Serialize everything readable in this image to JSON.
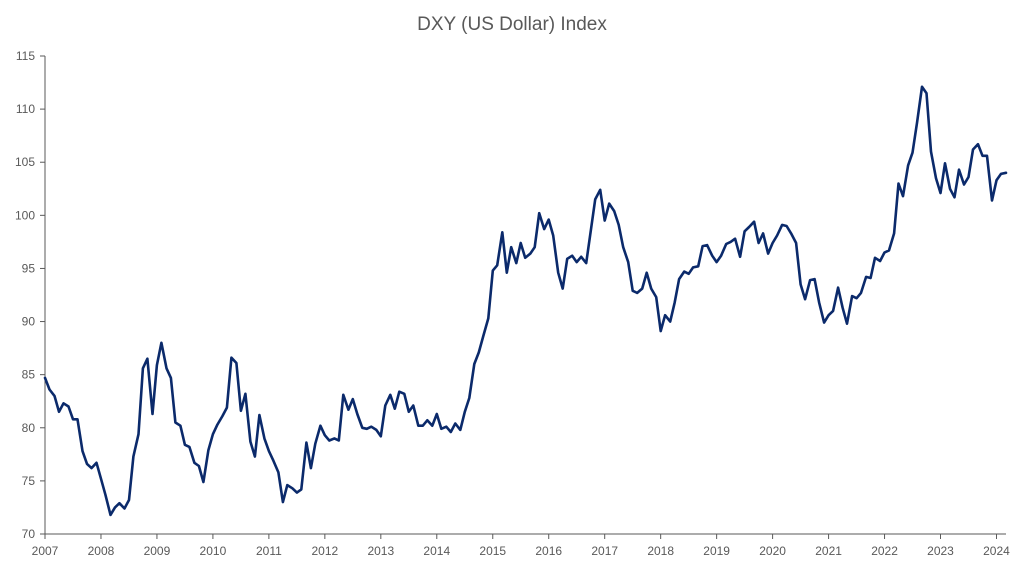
{
  "chart_data": {
    "type": "line",
    "title": "DXY (US Dollar) Index",
    "xlabel": "",
    "ylabel": "",
    "xlim": [
      2007,
      2024.17
    ],
    "ylim": [
      70,
      115
    ],
    "yticks": [
      70,
      75,
      80,
      85,
      90,
      95,
      100,
      105,
      110,
      115
    ],
    "xticks": [
      "2007",
      "2008",
      "2009",
      "2010",
      "2011",
      "2012",
      "2013",
      "2014",
      "2015",
      "2016",
      "2017",
      "2018",
      "2019",
      "2020",
      "2021",
      "2022",
      "2023",
      "2024"
    ],
    "grid": false,
    "legend": "none",
    "colors": {
      "line": "#0b2a6b",
      "axis": "#595959",
      "text": "#595959"
    },
    "series": [
      {
        "x": [
          2007.0,
          2007.08,
          2007.17,
          2007.25,
          2007.33,
          2007.42,
          2007.5,
          2007.58,
          2007.67,
          2007.75,
          2007.83,
          2007.92,
          2008.0,
          2008.08,
          2008.17,
          2008.25,
          2008.33,
          2008.42,
          2008.5,
          2008.58,
          2008.67,
          2008.75,
          2008.83,
          2008.92,
          2009.0,
          2009.08,
          2009.17,
          2009.25,
          2009.33,
          2009.42,
          2009.5,
          2009.58,
          2009.67,
          2009.75,
          2009.83,
          2009.92,
          2010.0,
          2010.08,
          2010.17,
          2010.25,
          2010.33,
          2010.42,
          2010.5,
          2010.58,
          2010.67,
          2010.75,
          2010.83,
          2010.92,
          2011.0,
          2011.08,
          2011.17,
          2011.25,
          2011.33,
          2011.42,
          2011.5,
          2011.58,
          2011.67,
          2011.75,
          2011.83,
          2011.92,
          2012.0,
          2012.08,
          2012.17,
          2012.25,
          2012.33,
          2012.42,
          2012.5,
          2012.58,
          2012.67,
          2012.75,
          2012.83,
          2012.92,
          2013.0,
          2013.08,
          2013.17,
          2013.25,
          2013.33,
          2013.42,
          2013.5,
          2013.58,
          2013.67,
          2013.75,
          2013.83,
          2013.92,
          2014.0,
          2014.08,
          2014.17,
          2014.25,
          2014.33,
          2014.42,
          2014.5,
          2014.58,
          2014.67,
          2014.75,
          2014.83,
          2014.92,
          2015.0,
          2015.08,
          2015.17,
          2015.25,
          2015.33,
          2015.42,
          2015.5,
          2015.58,
          2015.67,
          2015.75,
          2015.83,
          2015.92,
          2016.0,
          2016.08,
          2016.17,
          2016.25,
          2016.33,
          2016.42,
          2016.5,
          2016.58,
          2016.67,
          2016.75,
          2016.83,
          2016.92,
          2017.0,
          2017.08,
          2017.17,
          2017.25,
          2017.33,
          2017.42,
          2017.5,
          2017.58,
          2017.67,
          2017.75,
          2017.83,
          2017.92,
          2018.0,
          2018.08,
          2018.17,
          2018.25,
          2018.33,
          2018.42,
          2018.5,
          2018.58,
          2018.67,
          2018.75,
          2018.83,
          2018.92,
          2019.0,
          2019.08,
          2019.17,
          2019.25,
          2019.33,
          2019.42,
          2019.5,
          2019.58,
          2019.67,
          2019.75,
          2019.83,
          2019.92,
          2020.0,
          2020.08,
          2020.17,
          2020.25,
          2020.33,
          2020.42,
          2020.5,
          2020.58,
          2020.67,
          2020.75,
          2020.83,
          2020.92,
          2021.0,
          2021.08,
          2021.17,
          2021.25,
          2021.33,
          2021.42,
          2021.5,
          2021.58,
          2021.67,
          2021.75,
          2021.83,
          2021.92,
          2022.0,
          2022.08,
          2022.17,
          2022.25,
          2022.33,
          2022.42,
          2022.5,
          2022.58,
          2022.67,
          2022.75,
          2022.83,
          2022.92,
          2023.0,
          2023.08,
          2023.17,
          2023.25,
          2023.33,
          2023.42,
          2023.5,
          2023.58,
          2023.67,
          2023.75,
          2023.83,
          2023.92,
          2024.0,
          2024.08,
          2024.17
        ],
        "y": [
          84.7,
          83.6,
          83.0,
          81.5,
          82.3,
          82.0,
          80.8,
          80.8,
          77.8,
          76.6,
          76.2,
          76.7,
          75.2,
          73.7,
          71.8,
          72.5,
          72.9,
          72.4,
          73.2,
          77.3,
          79.4,
          85.6,
          86.5,
          81.3,
          85.9,
          88.0,
          85.6,
          84.7,
          80.5,
          80.2,
          78.4,
          78.2,
          76.7,
          76.4,
          74.9,
          77.9,
          79.4,
          80.3,
          81.1,
          81.9,
          86.6,
          86.1,
          81.6,
          83.2,
          78.7,
          77.3,
          81.2,
          79.0,
          77.8,
          76.9,
          75.8,
          73.0,
          74.6,
          74.3,
          73.9,
          74.2,
          78.6,
          76.2,
          78.5,
          80.2,
          79.3,
          78.8,
          79.0,
          78.8,
          83.1,
          81.7,
          82.7,
          81.3,
          80.0,
          79.9,
          80.1,
          79.8,
          79.2,
          82.1,
          83.1,
          81.8,
          83.4,
          83.2,
          81.5,
          82.1,
          80.2,
          80.2,
          80.7,
          80.2,
          81.3,
          79.9,
          80.1,
          79.6,
          80.4,
          79.8,
          81.5,
          82.8,
          86.0,
          87.1,
          88.6,
          90.3,
          94.8,
          95.3,
          98.4,
          94.6,
          97.0,
          95.5,
          97.4,
          96.0,
          96.4,
          97.0,
          100.2,
          98.7,
          99.6,
          98.1,
          94.6,
          93.1,
          95.9,
          96.2,
          95.6,
          96.1,
          95.5,
          98.5,
          101.5,
          102.4,
          99.5,
          101.1,
          100.4,
          99.1,
          97.0,
          95.6,
          92.9,
          92.7,
          93.1,
          94.6,
          93.1,
          92.3,
          89.1,
          90.6,
          90.0,
          91.8,
          94.0,
          94.7,
          94.5,
          95.1,
          95.2,
          97.1,
          97.2,
          96.2,
          95.6,
          96.2,
          97.3,
          97.5,
          97.8,
          96.1,
          98.5,
          98.9,
          99.4,
          97.4,
          98.3,
          96.4,
          97.4,
          98.1,
          99.1,
          99.0,
          98.3,
          97.4,
          93.5,
          92.1,
          93.9,
          94.0,
          91.8,
          89.9,
          90.6,
          91.0,
          93.2,
          91.3,
          89.8,
          92.4,
          92.2,
          92.7,
          94.2,
          94.1,
          96.0,
          95.7,
          96.5,
          96.7,
          98.3,
          103.0,
          101.8,
          104.7,
          105.9,
          108.7,
          112.1,
          111.5,
          106.0,
          103.5,
          102.1,
          104.9,
          102.5,
          101.7,
          104.3,
          102.9,
          103.6,
          106.2,
          106.7,
          105.6,
          105.6,
          101.4,
          103.3,
          103.9,
          104.0
        ]
      }
    ]
  }
}
